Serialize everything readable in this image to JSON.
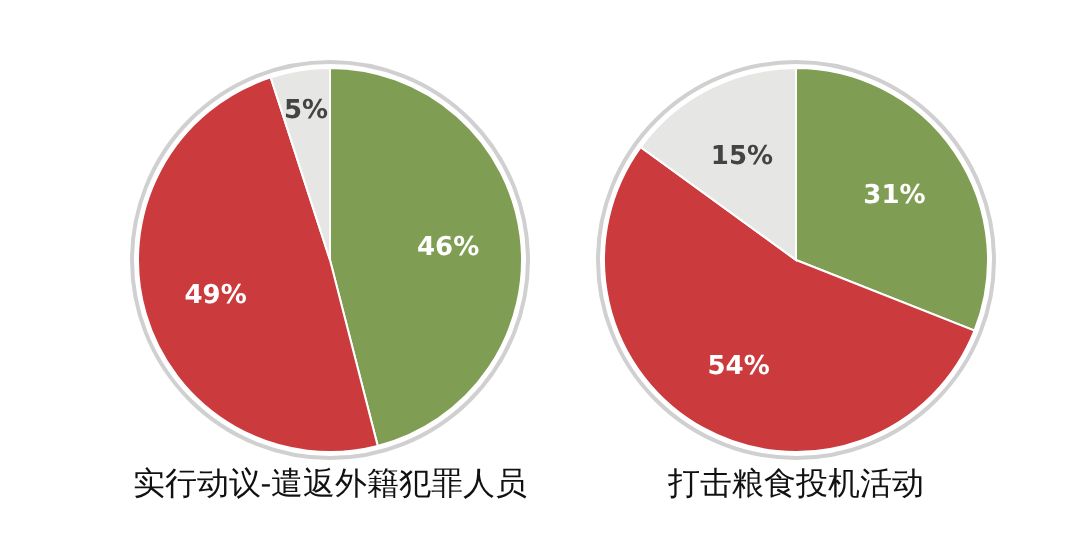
{
  "chart_data": [
    {
      "type": "pie",
      "title": "实行动议-遣返外籍犯罪人员",
      "categories": [
        null,
        null,
        null
      ],
      "values": [
        46,
        49,
        5
      ],
      "colors": [
        "#7f9e54",
        "#cb3a3c",
        "#e6e6e4"
      ],
      "value_labels": [
        "46%",
        "49%",
        "5%"
      ]
    },
    {
      "type": "pie",
      "title": "打击粮食投机活动",
      "categories": [
        null,
        null,
        null
      ],
      "values": [
        31,
        54,
        15
      ],
      "colors": [
        "#7f9e54",
        "#cb3a3c",
        "#e6e6e4"
      ],
      "value_labels": [
        "31%",
        "54%",
        "15%"
      ]
    }
  ]
}
